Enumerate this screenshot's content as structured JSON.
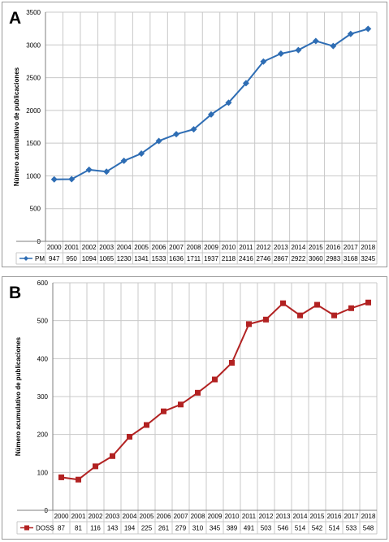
{
  "colors": {
    "series_a": "#2e6db4",
    "series_b": "#b22222",
    "grid": "#c8c8c8",
    "axis": "#7f7f7f"
  },
  "chart_data": [
    {
      "panel_label": "A",
      "type": "line",
      "marker": "diamond",
      "x": [
        "2000",
        "2001",
        "2002",
        "2003",
        "2004",
        "2005",
        "2006",
        "2007",
        "2008",
        "2009",
        "2010",
        "2011",
        "2012",
        "2013",
        "2014",
        "2015",
        "2016",
        "2017",
        "2018"
      ],
      "series": [
        {
          "name": "PM",
          "values": [
            947,
            950,
            1094,
            1065,
            1230,
            1341,
            1533,
            1636,
            1711,
            1937,
            2118,
            2416,
            2746,
            2867,
            2922,
            3060,
            2983,
            3168,
            3245
          ]
        }
      ],
      "ylabel": "Número acumulativo de publicaciones",
      "ylim": [
        0,
        3500
      ],
      "yticks": [
        0,
        500,
        1000,
        1500,
        2000,
        2500,
        3000,
        3500
      ],
      "grid": true,
      "legend": "data-table"
    },
    {
      "panel_label": "B",
      "type": "line",
      "marker": "square",
      "x": [
        "2000",
        "2001",
        "2002",
        "2003",
        "2004",
        "2005",
        "2006",
        "2007",
        "2008",
        "2009",
        "2010",
        "2011",
        "2012",
        "2013",
        "2014",
        "2015",
        "2016",
        "2017",
        "2018"
      ],
      "series": [
        {
          "name": "DOSS",
          "values": [
            87,
            81,
            116,
            143,
            194,
            225,
            261,
            279,
            310,
            345,
            389,
            491,
            503,
            546,
            514,
            542,
            514,
            533,
            548
          ]
        }
      ],
      "ylabel": "Número acumulativo de publicaciones",
      "ylim": [
        0,
        600
      ],
      "yticks": [
        0,
        100,
        200,
        300,
        400,
        500,
        600
      ],
      "grid": true,
      "legend": "data-table"
    }
  ]
}
